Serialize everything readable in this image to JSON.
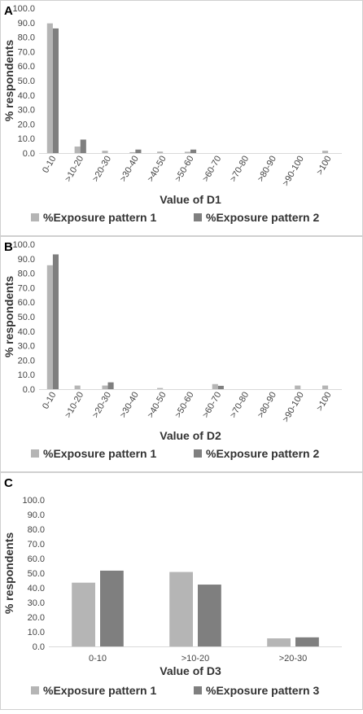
{
  "chart_data": [
    {
      "type": "bar",
      "panel_label": "A",
      "categories": [
        "0-10",
        ">10-20",
        ">20-30",
        ">30-40",
        ">40-50",
        ">50-60",
        ">60-70",
        ">70-80",
        ">80-90",
        ">90-100",
        ">100"
      ],
      "series": [
        {
          "name": "%Exposure pattern 1",
          "color": "#b5b5b5",
          "values": [
            89.5,
            4.5,
            1.6,
            0.6,
            1.0,
            0.9,
            0,
            0,
            0,
            0,
            1.6
          ]
        },
        {
          "name": "%Exposure pattern 2",
          "color": "#7f7f7f",
          "values": [
            86.0,
            9.3,
            0,
            2.4,
            0,
            2.4,
            0,
            0,
            0,
            0,
            0
          ]
        }
      ],
      "xlabel": "Value of D1",
      "ylabel": "% respondents",
      "ylim": [
        0,
        100
      ],
      "yticks": [
        "0.0",
        "10.0",
        "20.0",
        "30.0",
        "40.0",
        "50.0",
        "60.0",
        "70.0",
        "80.0",
        "90.0",
        "100.0"
      ],
      "legend": "bottom"
    },
    {
      "type": "bar",
      "panel_label": "B",
      "categories": [
        "0-10",
        ">10-20",
        ">20-30",
        ">30-40",
        ">40-50",
        ">50-60",
        ">60-70",
        ">70-80",
        ">80-90",
        ">90-100",
        ">100"
      ],
      "series": [
        {
          "name": "%Exposure pattern 1",
          "color": "#b5b5b5",
          "values": [
            85.5,
            2.5,
            2.5,
            0,
            0.8,
            0,
            3.5,
            0,
            0,
            2.5,
            2.5
          ]
        },
        {
          "name": "%Exposure pattern 2",
          "color": "#7f7f7f",
          "values": [
            93.0,
            0,
            4.7,
            0,
            0,
            0,
            2.3,
            0,
            0,
            0,
            0
          ]
        }
      ],
      "xlabel": "Value of D2",
      "ylabel": "% respondents",
      "ylim": [
        0,
        100
      ],
      "yticks": [
        "0.0",
        "10.0",
        "20.0",
        "30.0",
        "40.0",
        "50.0",
        "60.0",
        "70.0",
        "80.0",
        "90.0",
        "100.0"
      ],
      "legend": "bottom"
    },
    {
      "type": "bar",
      "panel_label": "C",
      "categories": [
        "0-10",
        ">10-20",
        ">20-30"
      ],
      "series": [
        {
          "name": "%Exposure pattern 1",
          "color": "#b5b5b5",
          "values": [
            43.5,
            50.8,
            5.5
          ]
        },
        {
          "name": "%Exposure pattern 3",
          "color": "#7f7f7f",
          "values": [
            51.7,
            42.2,
            6.2
          ]
        }
      ],
      "xlabel": "Value of D3",
      "ylabel": "% respondents",
      "ylim": [
        0,
        100
      ],
      "yticks": [
        "0.0",
        "10.0",
        "20.0",
        "30.0",
        "40.0",
        "50.0",
        "60.0",
        "70.0",
        "80.0",
        "90.0",
        "100.0"
      ],
      "legend": "bottom"
    }
  ]
}
